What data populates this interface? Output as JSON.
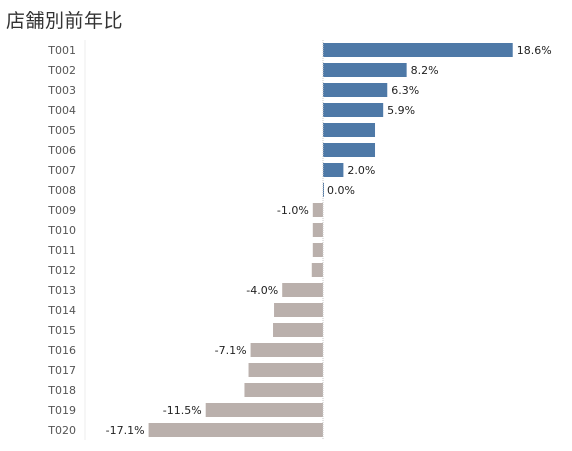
{
  "title": "店舗別前年比",
  "colors": {
    "positive": "#4e79a7",
    "negative": "#bab0ac",
    "axis": "#c8c8c8"
  },
  "chart_data": {
    "type": "bar",
    "orientation": "horizontal",
    "categories": [
      "T001",
      "T002",
      "T003",
      "T004",
      "T005",
      "T006",
      "T007",
      "T008",
      "T009",
      "T010",
      "T011",
      "T012",
      "T013",
      "T014",
      "T015",
      "T016",
      "T017",
      "T018",
      "T019",
      "T020"
    ],
    "values": [
      18.6,
      8.2,
      6.3,
      5.9,
      5.1,
      5.1,
      2.0,
      0.0,
      -1.0,
      -1.0,
      -1.0,
      -1.1,
      -4.0,
      -4.8,
      -4.9,
      -7.1,
      -7.3,
      -7.7,
      -11.5,
      -17.1
    ],
    "data_labels": [
      "18.6%",
      "8.2%",
      "6.3%",
      "5.9%",
      "",
      "",
      "2.0%",
      "0.0%",
      "-1.0%",
      "",
      "",
      "",
      "-4.0%",
      "",
      "",
      "-7.1%",
      "",
      "",
      "-11.5%",
      "-17.1%"
    ],
    "unit": "%",
    "xlim": [
      -23,
      19
    ],
    "grid": false
  }
}
